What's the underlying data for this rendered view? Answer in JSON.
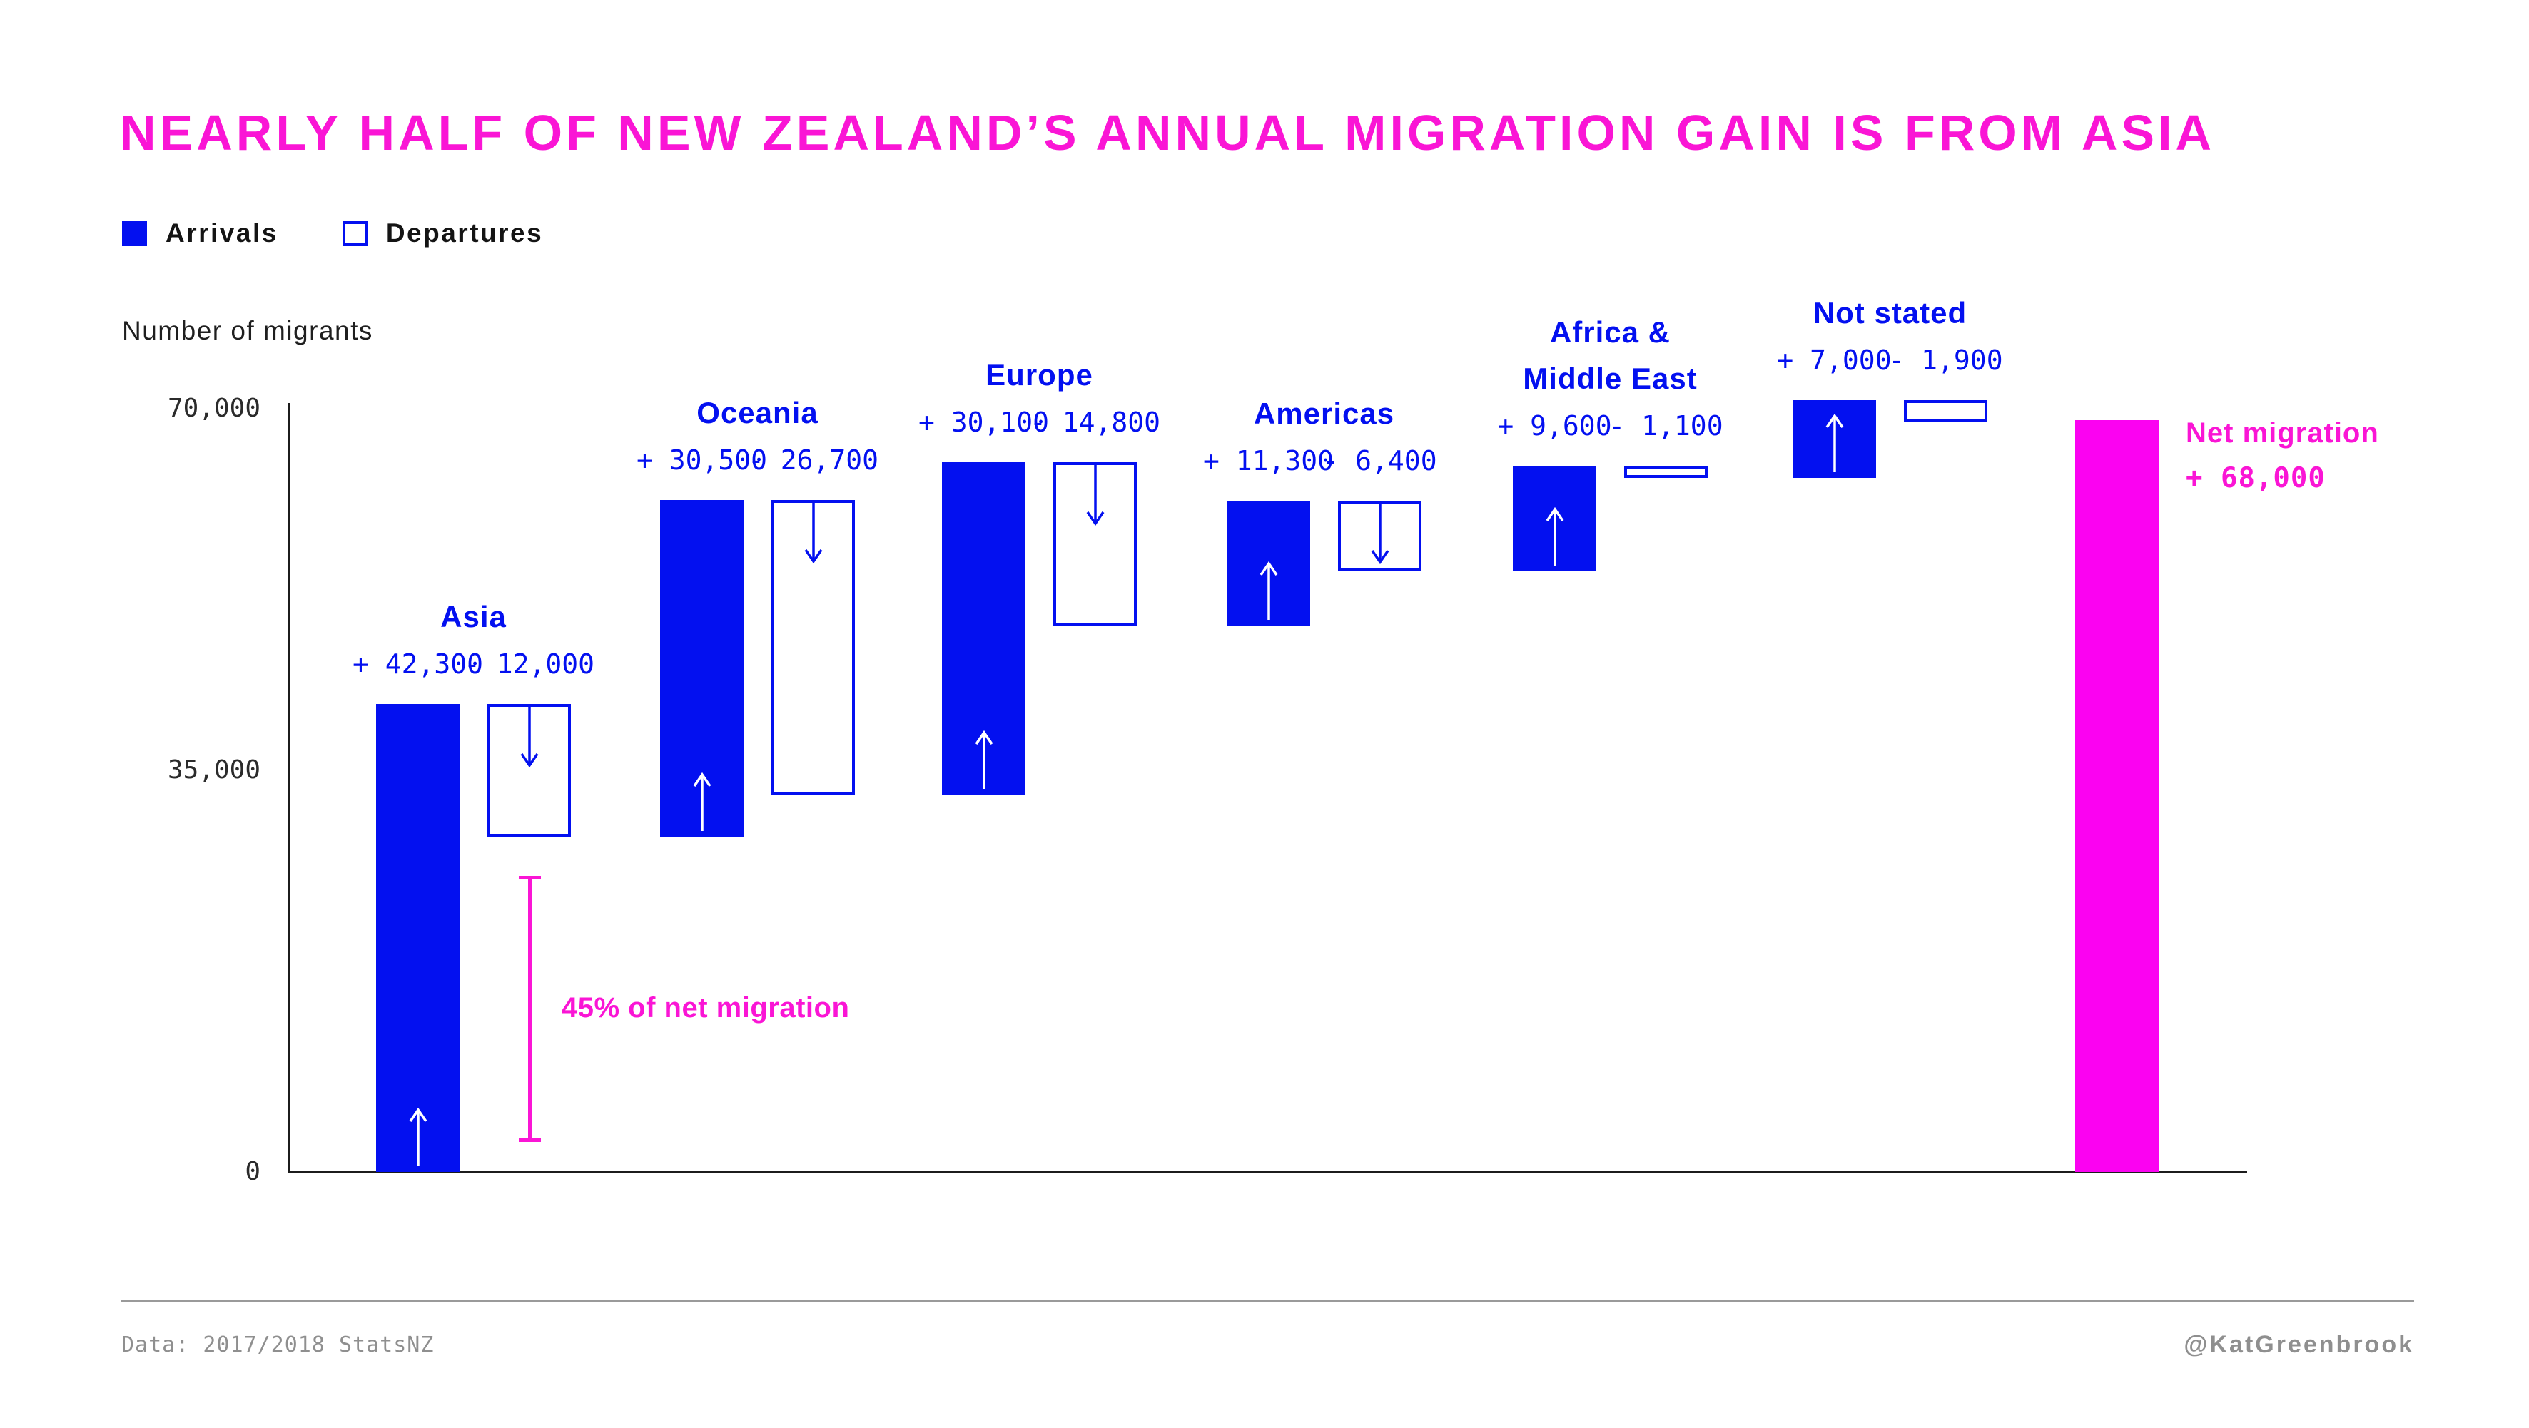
{
  "title": "NEARLY HALF OF NEW ZEALAND’S ANNUAL MIGRATION GAIN IS FROM ASIA",
  "legend": {
    "arrivals": "Arrivals",
    "departures": "Departures"
  },
  "y_axis": {
    "label": "Number of migrants"
  },
  "chart_data": {
    "type": "bar",
    "subtype": "waterfall",
    "title": "Nearly half of New Zealand's annual migration gain is from Asia",
    "ylabel": "Number of migrants",
    "ylim": [
      0,
      70000
    ],
    "y_ticks": [
      {
        "value": 70000,
        "label": "70,000"
      },
      {
        "value": 35000,
        "label": "35,000"
      },
      {
        "value": 0,
        "label": "0"
      }
    ],
    "legend_entries": [
      "Arrivals",
      "Departures"
    ],
    "categories": [
      "Asia",
      "Oceania",
      "Europe",
      "Americas",
      "Africa & Middle East",
      "Not stated"
    ],
    "regions": [
      {
        "name_lines": [
          "Asia"
        ],
        "arrivals": 42300,
        "departures": 12000,
        "arrivals_label": "+ 42,300",
        "departures_label": "- 12,000"
      },
      {
        "name_lines": [
          "Oceania"
        ],
        "arrivals": 30500,
        "departures": 26700,
        "arrivals_label": "+ 30,500",
        "departures_label": "- 26,700"
      },
      {
        "name_lines": [
          "Europe"
        ],
        "arrivals": 30100,
        "departures": 14800,
        "arrivals_label": "+ 30,100",
        "departures_label": "- 14,800"
      },
      {
        "name_lines": [
          "Americas"
        ],
        "arrivals": 11300,
        "departures": 6400,
        "arrivals_label": "+ 11,300",
        "departures_label": "- 6,400"
      },
      {
        "name_lines": [
          "Africa &",
          "Middle East"
        ],
        "arrivals": 9600,
        "departures": 1100,
        "arrivals_label": "+ 9,600",
        "departures_label": "- 1,100"
      },
      {
        "name_lines": [
          "Not stated"
        ],
        "arrivals": 7000,
        "departures": 1900,
        "arrivals_label": "+ 7,000",
        "departures_label": "- 1,900"
      }
    ],
    "net": {
      "label": "Net migration",
      "value": 68000,
      "value_label": "+ 68,000"
    }
  },
  "annotation": {
    "text": "45% of net migration"
  },
  "footer": {
    "source": "Data: 2017/2018 StatsNZ",
    "credit": "@KatGreenbrook"
  },
  "colors": {
    "accent_blue": "#0310f0",
    "magenta_text": "#fa15d5",
    "magenta_bar": "#fb02f1",
    "axis": "#1c1c1c",
    "muted_gray": "#8f8f8f"
  }
}
